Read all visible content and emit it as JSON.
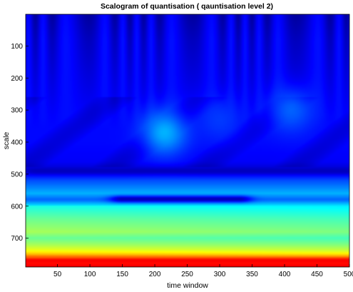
{
  "chart_data": {
    "type": "heatmap",
    "title": "Scalogram of quantisation ( qauntisation level 2)",
    "xlabel": "time window",
    "ylabel": "scale",
    "xlim": [
      1,
      500
    ],
    "ylim": [
      1,
      790
    ],
    "y_reversed": true,
    "x_ticks": [
      50,
      100,
      150,
      200,
      250,
      300,
      350,
      400,
      450,
      500
    ],
    "y_ticks": [
      100,
      200,
      300,
      400,
      500,
      600,
      700
    ],
    "colormap": "jet",
    "color_range": [
      0,
      1
    ],
    "grid": false,
    "legend": "none",
    "intensity_profile": {
      "scale": [
        1,
        80,
        160,
        240,
        320,
        400,
        460,
        490,
        520,
        560,
        580,
        600,
        640,
        680,
        700,
        720,
        740,
        760,
        775,
        790
      ],
      "value": [
        0.08,
        0.1,
        0.11,
        0.12,
        0.13,
        0.13,
        0.12,
        0.08,
        0.2,
        0.3,
        0.22,
        0.36,
        0.44,
        0.5,
        0.44,
        0.5,
        0.58,
        0.72,
        0.84,
        0.9
      ]
    },
    "features": [
      {
        "kind": "blob",
        "time": 215,
        "scale": 370,
        "value": 0.3
      },
      {
        "kind": "blob",
        "time": 410,
        "scale": 300,
        "value": 0.22
      },
      {
        "kind": "blob",
        "time": 300,
        "scale": 330,
        "value": 0.18
      },
      {
        "kind": "band",
        "time_range": [
          150,
          330
        ],
        "scale": 578,
        "value": 0.05
      },
      {
        "kind": "band",
        "time_range": [
          20,
          500
        ],
        "scale": 490,
        "value": 0.06
      },
      {
        "kind": "band",
        "time_range": [
          1,
          500
        ],
        "scale": 770,
        "value": 0.88
      }
    ]
  }
}
